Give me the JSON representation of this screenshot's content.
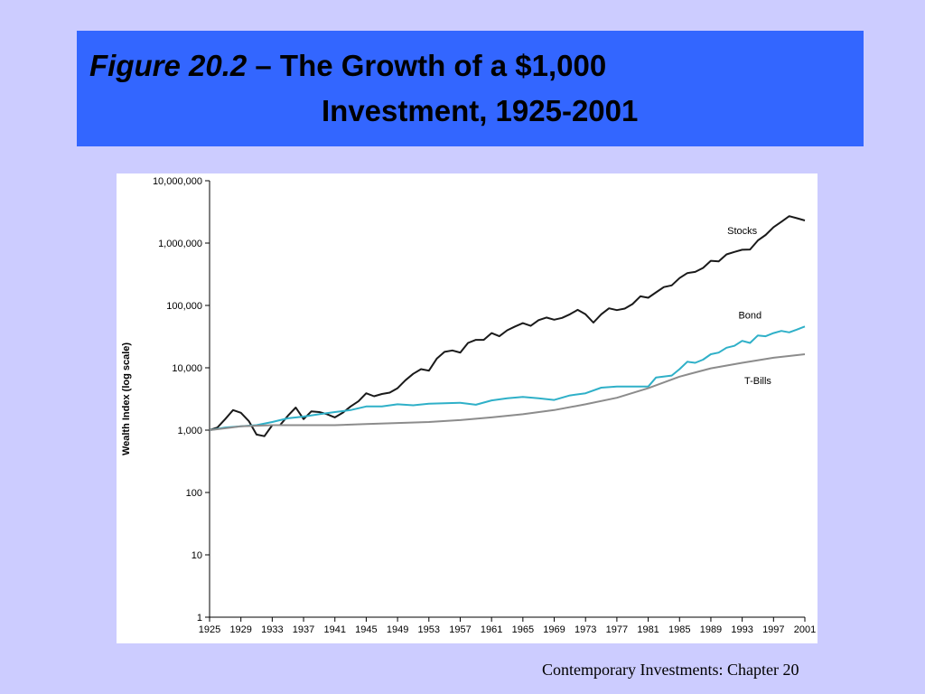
{
  "slide": {
    "title_figure": "Figure 20.2",
    "title_rest": " – The Growth of a $1,000",
    "title_line2": "Investment, 1925-2001",
    "footer": "Contemporary Investments: Chapter 20"
  },
  "colors": {
    "background": "#ccccff",
    "title_bar": "#3366ff",
    "stocks": "#1a1a1a",
    "bond": "#2fb0c8",
    "tbills": "#8c8c8c"
  },
  "chart_data": {
    "type": "line",
    "title": "",
    "xlabel": "",
    "ylabel": "Wealth Index (log scale)",
    "y_scale": "log",
    "ylim": [
      1,
      10000000
    ],
    "xlim": [
      1925,
      2001
    ],
    "grid": false,
    "y_ticks": [
      1,
      10,
      100,
      1000,
      10000,
      100000,
      1000000,
      10000000
    ],
    "y_tick_labels": [
      "1",
      "10",
      "100",
      "1,000",
      "10,000",
      "100,000",
      "1,000,000",
      "10,000,000"
    ],
    "x_ticks": [
      1925,
      1929,
      1933,
      1937,
      1941,
      1945,
      1949,
      1953,
      1957,
      1961,
      1965,
      1969,
      1973,
      1977,
      1981,
      1985,
      1989,
      1993,
      1997,
      2001
    ],
    "x_tick_labels": [
      "1925",
      "1929",
      "1933",
      "1937",
      "1941",
      "1945",
      "1949",
      "1953",
      "1957",
      "1961",
      "1965",
      "1969",
      "1973",
      "1977",
      "1981",
      "1985",
      "1989",
      "1993",
      "1997",
      "2001"
    ],
    "series": [
      {
        "name": "Stocks",
        "label_x": 1993,
        "label_y": 1400000,
        "points": [
          [
            1925,
            1000
          ],
          [
            1926,
            1100
          ],
          [
            1927,
            1500
          ],
          [
            1928,
            2100
          ],
          [
            1929,
            1900
          ],
          [
            1930,
            1400
          ],
          [
            1931,
            850
          ],
          [
            1932,
            800
          ],
          [
            1933,
            1200
          ],
          [
            1934,
            1200
          ],
          [
            1935,
            1700
          ],
          [
            1936,
            2300
          ],
          [
            1937,
            1500
          ],
          [
            1938,
            2000
          ],
          [
            1939,
            1950
          ],
          [
            1940,
            1800
          ],
          [
            1941,
            1600
          ],
          [
            1942,
            1900
          ],
          [
            1943,
            2400
          ],
          [
            1944,
            2900
          ],
          [
            1945,
            3900
          ],
          [
            1946,
            3500
          ],
          [
            1947,
            3800
          ],
          [
            1948,
            4000
          ],
          [
            1949,
            4700
          ],
          [
            1950,
            6300
          ],
          [
            1951,
            8000
          ],
          [
            1952,
            9500
          ],
          [
            1953,
            9000
          ],
          [
            1954,
            14000
          ],
          [
            1955,
            18000
          ],
          [
            1956,
            19000
          ],
          [
            1957,
            17500
          ],
          [
            1958,
            25000
          ],
          [
            1959,
            28000
          ],
          [
            1960,
            28000
          ],
          [
            1961,
            36000
          ],
          [
            1962,
            32000
          ],
          [
            1963,
            40000
          ],
          [
            1964,
            46000
          ],
          [
            1965,
            52000
          ],
          [
            1966,
            47000
          ],
          [
            1967,
            58000
          ],
          [
            1968,
            64000
          ],
          [
            1969,
            59000
          ],
          [
            1970,
            63000
          ],
          [
            1971,
            72000
          ],
          [
            1972,
            85000
          ],
          [
            1973,
            72000
          ],
          [
            1974,
            53000
          ],
          [
            1975,
            72000
          ],
          [
            1976,
            90000
          ],
          [
            1977,
            84000
          ],
          [
            1978,
            89000
          ],
          [
            1979,
            105000
          ],
          [
            1980,
            140000
          ],
          [
            1981,
            133000
          ],
          [
            1982,
            162000
          ],
          [
            1983,
            197000
          ],
          [
            1984,
            210000
          ],
          [
            1985,
            275000
          ],
          [
            1986,
            330000
          ],
          [
            1987,
            345000
          ],
          [
            1988,
            400000
          ],
          [
            1989,
            520000
          ],
          [
            1990,
            510000
          ],
          [
            1991,
            660000
          ],
          [
            1992,
            720000
          ],
          [
            1993,
            780000
          ],
          [
            1994,
            790000
          ],
          [
            1995,
            1100000
          ],
          [
            1996,
            1350000
          ],
          [
            1997,
            1800000
          ],
          [
            1998,
            2200000
          ],
          [
            1999,
            2700000
          ],
          [
            2000,
            2500000
          ],
          [
            2001,
            2300000
          ]
        ]
      },
      {
        "name": "Bond",
        "label_x": 1994,
        "label_y": 62000,
        "points": [
          [
            1925,
            1000
          ],
          [
            1927,
            1100
          ],
          [
            1929,
            1150
          ],
          [
            1931,
            1200
          ],
          [
            1933,
            1350
          ],
          [
            1935,
            1550
          ],
          [
            1937,
            1650
          ],
          [
            1939,
            1800
          ],
          [
            1941,
            1950
          ],
          [
            1943,
            2100
          ],
          [
            1945,
            2400
          ],
          [
            1947,
            2400
          ],
          [
            1949,
            2600
          ],
          [
            1951,
            2500
          ],
          [
            1953,
            2650
          ],
          [
            1955,
            2700
          ],
          [
            1957,
            2750
          ],
          [
            1959,
            2550
          ],
          [
            1961,
            3000
          ],
          [
            1963,
            3250
          ],
          [
            1965,
            3400
          ],
          [
            1967,
            3250
          ],
          [
            1969,
            3050
          ],
          [
            1971,
            3600
          ],
          [
            1973,
            3900
          ],
          [
            1975,
            4800
          ],
          [
            1977,
            5000
          ],
          [
            1979,
            5000
          ],
          [
            1981,
            5000
          ],
          [
            1982,
            7000
          ],
          [
            1984,
            7500
          ],
          [
            1985,
            9500
          ],
          [
            1986,
            12500
          ],
          [
            1987,
            12000
          ],
          [
            1988,
            13500
          ],
          [
            1989,
            16500
          ],
          [
            1990,
            17500
          ],
          [
            1991,
            21000
          ],
          [
            1992,
            22500
          ],
          [
            1993,
            27000
          ],
          [
            1994,
            25000
          ],
          [
            1995,
            33000
          ],
          [
            1996,
            32000
          ],
          [
            1997,
            36000
          ],
          [
            1998,
            39000
          ],
          [
            1999,
            37000
          ],
          [
            2000,
            41000
          ],
          [
            2001,
            46000
          ]
        ]
      },
      {
        "name": "T-Bills",
        "label_x": 1995,
        "label_y": 5500,
        "points": [
          [
            1925,
            1000
          ],
          [
            1929,
            1150
          ],
          [
            1933,
            1200
          ],
          [
            1937,
            1200
          ],
          [
            1941,
            1200
          ],
          [
            1945,
            1250
          ],
          [
            1949,
            1300
          ],
          [
            1953,
            1350
          ],
          [
            1957,
            1450
          ],
          [
            1961,
            1600
          ],
          [
            1965,
            1800
          ],
          [
            1969,
            2100
          ],
          [
            1973,
            2600
          ],
          [
            1977,
            3300
          ],
          [
            1981,
            4700
          ],
          [
            1985,
            7200
          ],
          [
            1989,
            9800
          ],
          [
            1993,
            12000
          ],
          [
            1997,
            14500
          ],
          [
            2001,
            16500
          ]
        ]
      }
    ]
  }
}
